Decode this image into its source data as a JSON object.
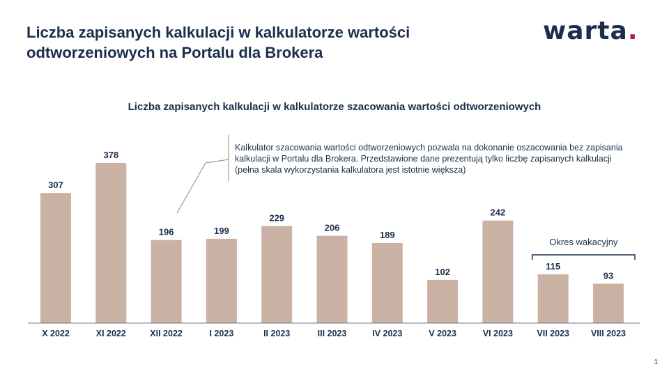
{
  "header": {
    "title": "Liczba zapisanych kalkulacji  w kalkulatorze wartości odtworzeniowych na Portalu dla Brokera",
    "logo_text": "warta",
    "logo_dot": "."
  },
  "note": "Kalkulator szacowania wartości odtworzeniowych pozwala na dokonanie oszacowania bez zapisania kalkulacji w Portalu dla Brokera. Przedstawione dane prezentują tylko liczbę zapisanych kalkulacji (pełna skala wykorzystania kalkulatora jest istotnie większa)",
  "page_number": "1",
  "colors": {
    "bar": "#c9b2a4",
    "text": "#1b2f4d",
    "logo_accent": "#b01e46"
  },
  "chart_data": {
    "type": "bar",
    "title": "Liczba zapisanych kalkulacji w kalkulatorze szacowania wartości odtworzeniowych",
    "categories": [
      "X 2022",
      "XI 2022",
      "XII 2022",
      "I 2023",
      "II 2023",
      "III 2023",
      "IV 2023",
      "V 2023",
      "VI 2023",
      "VII 2023",
      "VIII 2023"
    ],
    "values": [
      307,
      378,
      196,
      199,
      229,
      206,
      189,
      102,
      242,
      115,
      93
    ],
    "ylim": [
      0,
      400
    ],
    "grid": false,
    "annotation": {
      "text": "Okres wakacyjny",
      "categories": [
        "VII 2023",
        "VIII 2023"
      ]
    }
  }
}
